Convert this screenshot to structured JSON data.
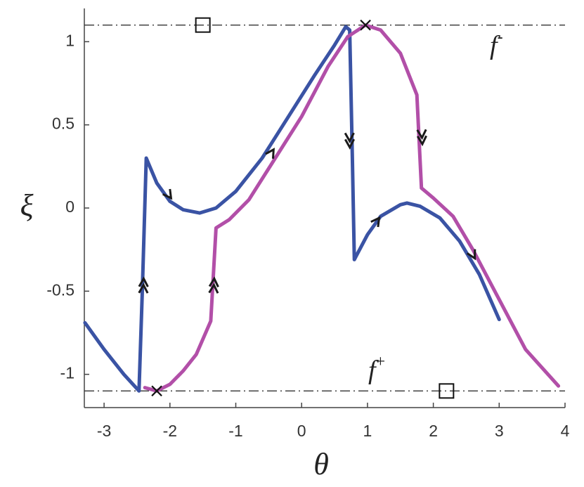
{
  "chart_data": {
    "type": "line",
    "xlabel": "θ",
    "ylabel": "ξ",
    "xlim": [
      -3.3,
      4
    ],
    "ylim": [
      -1.2,
      1.2
    ],
    "xticks": [
      -3,
      -2,
      -1,
      0,
      1,
      2,
      3,
      4
    ],
    "yticks": [
      -1,
      -0.5,
      0,
      0.5,
      1
    ],
    "series": [
      {
        "color": "#3a53a4",
        "x": [
          -3.29,
          -3.0,
          -2.7,
          -2.47,
          -2.42,
          -2.36,
          -2.2,
          -2.0,
          -1.8,
          -1.55,
          -1.3,
          -1.0,
          -0.6,
          -0.2,
          0.2,
          0.5,
          0.67,
          0.73,
          0.77,
          0.8,
          1.0,
          1.2,
          1.5,
          1.6,
          1.8,
          2.1,
          2.4,
          2.7,
          3.0
        ],
        "y": [
          -0.69,
          -0.85,
          -1.0,
          -1.1,
          -0.5,
          0.3,
          0.15,
          0.04,
          -0.01,
          -0.03,
          0.0,
          0.1,
          0.3,
          0.55,
          0.8,
          0.98,
          1.09,
          1.07,
          0.3,
          -0.31,
          -0.16,
          -0.05,
          0.02,
          0.03,
          0.01,
          -0.06,
          -0.2,
          -0.4,
          -0.67
        ]
      },
      {
        "color": "#b24fa8",
        "x": [
          -2.38,
          -2.2,
          -2.0,
          -1.8,
          -1.6,
          -1.38,
          -1.3,
          -1.1,
          -0.8,
          -0.4,
          0.0,
          0.4,
          0.7,
          0.97,
          1.2,
          1.5,
          1.75,
          1.82,
          2.0,
          2.3,
          2.6,
          3.0,
          3.4,
          3.9
        ],
        "y": [
          -1.08,
          -1.1,
          -1.06,
          -0.98,
          -0.88,
          -0.68,
          -0.12,
          -0.07,
          0.05,
          0.3,
          0.55,
          0.85,
          1.03,
          1.1,
          1.07,
          0.93,
          0.68,
          0.12,
          0.06,
          -0.05,
          -0.25,
          -0.55,
          -0.85,
          -1.07
        ]
      }
    ],
    "hlines": [
      1.1,
      -1.1
    ],
    "squares": [
      {
        "x": -1.5,
        "y": 1.1
      },
      {
        "x": 2.2,
        "y": -1.1
      }
    ],
    "crosses": [
      {
        "x": 0.97,
        "y": 1.1
      },
      {
        "x": -2.2,
        "y": -1.1
      }
    ],
    "arrows": [
      {
        "series": 0,
        "x": -2.4,
        "y": -0.45,
        "count": 2
      },
      {
        "series": 1,
        "x": -1.33,
        "y": -0.45,
        "count": 2
      },
      {
        "series": 0,
        "x": -2.02,
        "y": 0.08,
        "count": 1
      },
      {
        "series": 1,
        "x": -0.46,
        "y": 0.33,
        "count": 1
      },
      {
        "series": 0,
        "x": 0.73,
        "y": 0.39,
        "count": 2
      },
      {
        "series": 1,
        "x": 1.83,
        "y": 0.41,
        "count": 2
      },
      {
        "series": 0,
        "x": 1.14,
        "y": -0.08,
        "count": 1
      },
      {
        "series": 1,
        "x": 2.6,
        "y": -0.28,
        "count": 1
      }
    ],
    "annotations": [
      {
        "text": "f",
        "sup": "-"
      },
      {
        "text": "f",
        "sup": "+"
      }
    ]
  }
}
